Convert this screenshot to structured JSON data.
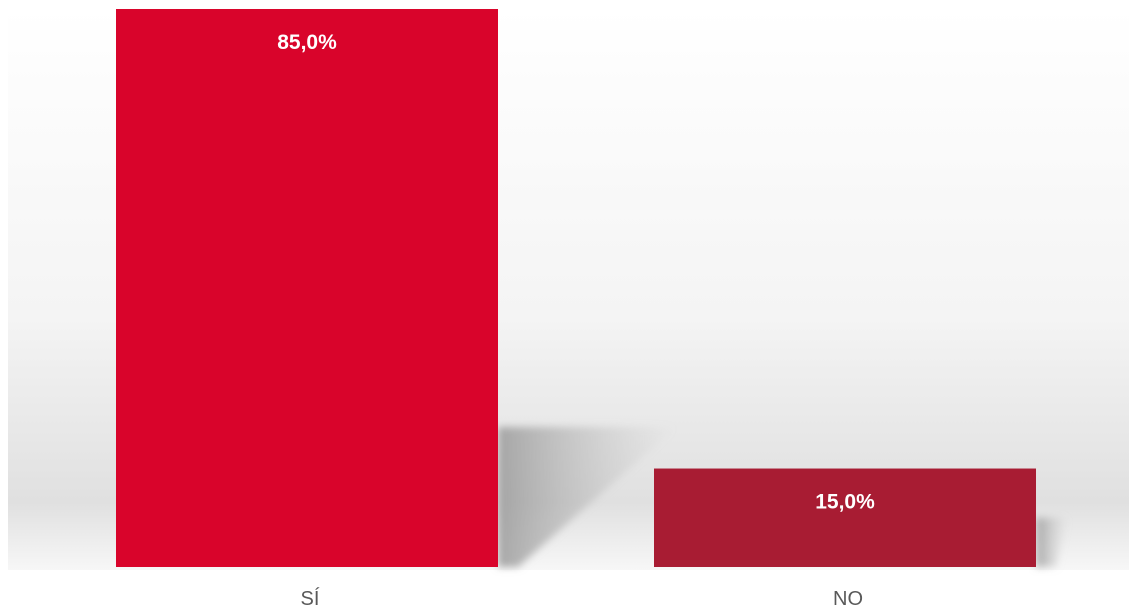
{
  "chart_data": {
    "type": "bar",
    "title": "",
    "xlabel": "",
    "ylabel": "",
    "categories": [
      "SÍ",
      "NO"
    ],
    "values": [
      85.0,
      15.0
    ],
    "value_labels": [
      "85,0%",
      "15,0%"
    ],
    "colors": [
      "#d9042b",
      "#a81c33"
    ],
    "ylim": [
      0,
      85
    ],
    "grid": false,
    "legend": "none"
  }
}
